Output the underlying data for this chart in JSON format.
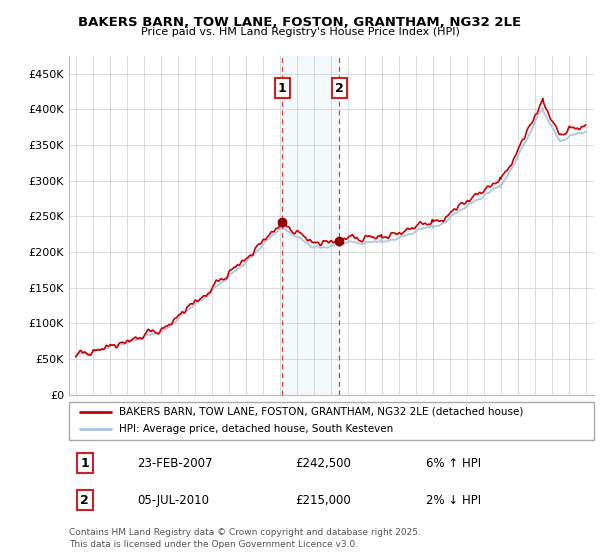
{
  "title": "BAKERS BARN, TOW LANE, FOSTON, GRANTHAM, NG32 2LE",
  "subtitle": "Price paid vs. HM Land Registry's House Price Index (HPI)",
  "red_label": "BAKERS BARN, TOW LANE, FOSTON, GRANTHAM, NG32 2LE (detached house)",
  "blue_label": "HPI: Average price, detached house, South Kesteven",
  "transaction1_date": "23-FEB-2007",
  "transaction1_price": 242500,
  "transaction1_note": "6% ↑ HPI",
  "transaction2_date": "05-JUL-2010",
  "transaction2_price": 215000,
  "transaction2_note": "2% ↓ HPI",
  "footer": "Contains HM Land Registry data © Crown copyright and database right 2025.\nThis data is licensed under the Open Government Licence v3.0.",
  "ylim": [
    0,
    475000
  ],
  "yticks": [
    0,
    50000,
    100000,
    150000,
    200000,
    250000,
    300000,
    350000,
    400000,
    450000
  ],
  "transaction1_x": 2007.15,
  "transaction2_x": 2010.5,
  "bg_color": "#ffffff",
  "grid_color": "#cccccc",
  "red_color": "#cc0000",
  "blue_color": "#aac4dd"
}
